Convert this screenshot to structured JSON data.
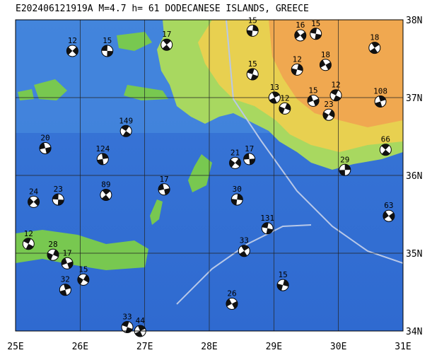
{
  "chart_data": {
    "type": "map",
    "title": "E202406121919A M=4.7 h= 61 DODECANESE ISLANDS, GREECE",
    "xlim": [
      25,
      31
    ],
    "ylim": [
      34,
      38
    ],
    "xticks": [
      {
        "value": 25,
        "label": "25E"
      },
      {
        "value": 26,
        "label": "26E"
      },
      {
        "value": 27,
        "label": "27E"
      },
      {
        "value": 28,
        "label": "28E"
      },
      {
        "value": 29,
        "label": "29E"
      },
      {
        "value": 30,
        "label": "30E"
      },
      {
        "value": 31,
        "label": "31E"
      }
    ],
    "yticks": [
      {
        "value": 34,
        "label": "34N"
      },
      {
        "value": 35,
        "label": "35N"
      },
      {
        "value": 36,
        "label": "36N"
      },
      {
        "value": 37,
        "label": "37N"
      },
      {
        "value": 38,
        "label": "38N"
      }
    ],
    "grid": true,
    "events": {
      "lon": [
        25.88,
        26.42,
        27.34,
        28.67,
        29.41,
        29.65,
        30.56,
        29.36,
        29.8,
        28.67,
        29.01,
        29.17,
        29.61,
        29.96,
        30.65,
        29.85,
        25.46,
        26.71,
        26.35,
        28.4,
        28.62,
        30.73,
        30.1,
        25.28,
        25.66,
        26.4,
        28.43,
        30.78,
        28.9,
        28.54,
        29.14,
        28.35,
        26.73,
        26.93,
        25.58,
        25.8,
        25.2,
        25.77,
        26.05,
        27.3
      ],
      "lat": [
        37.6,
        37.6,
        37.68,
        37.86,
        37.8,
        37.82,
        37.64,
        37.36,
        37.42,
        37.3,
        37.0,
        36.86,
        36.96,
        37.03,
        36.95,
        36.78,
        36.35,
        36.57,
        36.21,
        36.16,
        36.21,
        36.33,
        36.07,
        35.66,
        35.69,
        35.75,
        35.69,
        35.48,
        35.32,
        35.03,
        34.59,
        34.35,
        34.05,
        34.0,
        34.98,
        34.87,
        35.12,
        34.53,
        34.66,
        35.82
      ],
      "depth": [
        12,
        15,
        17,
        15,
        16,
        15,
        18,
        12,
        18,
        15,
        13,
        12,
        15,
        12,
        108,
        23,
        20,
        149,
        124,
        21,
        17,
        66,
        29,
        24,
        23,
        89,
        30,
        63,
        131,
        33,
        15,
        26,
        33,
        44,
        28,
        17,
        12,
        32,
        15,
        17
      ]
    }
  }
}
